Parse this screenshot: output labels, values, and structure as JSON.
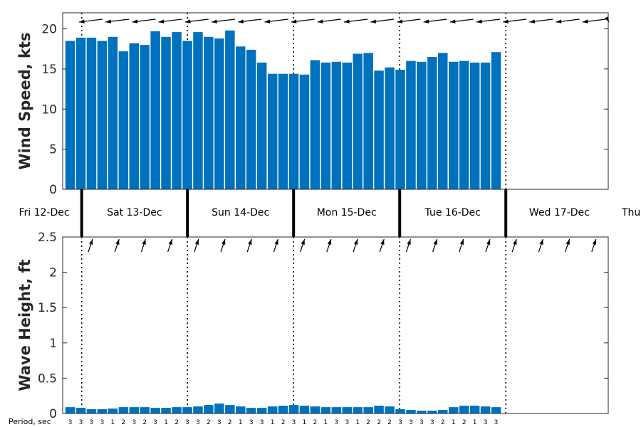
{
  "chart_data": [
    {
      "type": "bar",
      "panel": "wind",
      "ylabel": "Wind Speed, kts",
      "ylim": [
        0,
        22
      ],
      "yticks": [
        0,
        5,
        10,
        15,
        20
      ],
      "color": "#0072bd",
      "values": [
        18.5,
        18.9,
        18.9,
        18.5,
        19.0,
        17.2,
        18.2,
        18.0,
        19.7,
        19.0,
        19.6,
        18.5,
        19.6,
        19.0,
        18.8,
        19.8,
        17.8,
        17.4,
        15.8,
        14.4,
        14.4,
        14.4,
        14.3,
        16.1,
        15.8,
        15.9,
        15.8,
        16.9,
        17.0,
        14.8,
        15.2,
        14.9,
        16.0,
        15.9,
        16.5,
        17.0,
        15.9,
        16.0,
        15.8,
        15.8,
        17.1
      ],
      "direction_arrows": "pointing left (from east)"
    },
    {
      "type": "bar",
      "panel": "wave",
      "ylabel": "Wave Height, ft",
      "ylim": [
        0,
        2.5
      ],
      "yticks": [
        "0",
        "0.5",
        "1",
        "1.5",
        "2",
        "2.5"
      ],
      "color": "#0072bd",
      "values": [
        0.09,
        0.08,
        0.06,
        0.06,
        0.07,
        0.09,
        0.09,
        0.09,
        0.08,
        0.08,
        0.09,
        0.09,
        0.1,
        0.12,
        0.14,
        0.12,
        0.1,
        0.08,
        0.08,
        0.1,
        0.11,
        0.12,
        0.11,
        0.1,
        0.09,
        0.09,
        0.09,
        0.09,
        0.09,
        0.11,
        0.1,
        0.06,
        0.05,
        0.04,
        0.04,
        0.05,
        0.09,
        0.11,
        0.11,
        0.1,
        0.09
      ],
      "period_title": "Period, sec",
      "periods": [
        "3",
        "3",
        "3",
        "3",
        "1",
        "2",
        "3",
        "2",
        "3",
        "1",
        "2",
        "3",
        "3",
        "2",
        "3",
        "2",
        "1",
        "3",
        "3",
        "1",
        "2",
        "3",
        "1",
        "2",
        "1",
        "3",
        "3",
        "1",
        "2",
        "2",
        "2",
        "3",
        "3",
        "3",
        "3",
        "2",
        "1",
        "2",
        "1",
        "3",
        "3"
      ],
      "direction_arrows": "pointing up-right (from south-southwest)"
    }
  ],
  "days": [
    "Fri 12-Dec",
    "Sat 13-Dec",
    "Sun 14-Dec",
    "Mon 15-Dec",
    "Tue 16-Dec",
    "Wed 17-Dec",
    "Thu"
  ]
}
